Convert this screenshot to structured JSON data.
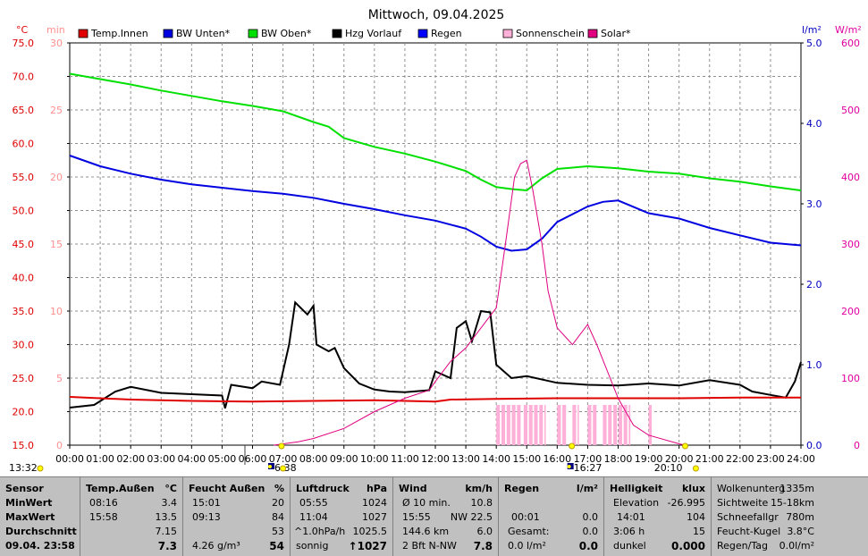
{
  "chart_data": {
    "type": "line",
    "title": "Mittwoch, 09.04.2025",
    "x_ticks": [
      "00:00",
      "01:00",
      "02:00",
      "03:00",
      "04:00",
      "05:00",
      "06:00",
      "07:00",
      "08:00",
      "09:00",
      "10:00",
      "11:00",
      "12:00",
      "13:00",
      "14:00",
      "15:00",
      "16:00",
      "17:00",
      "18:00",
      "19:00",
      "20:00",
      "21:00",
      "22:00",
      "23:00",
      "24:00"
    ],
    "axes": {
      "temp_c": {
        "label": "°C",
        "color": "#e00000",
        "min": 15,
        "max": 75,
        "ticks": [
          "15.0",
          "20.0",
          "25.0",
          "30.0",
          "35.0",
          "40.0",
          "45.0",
          "50.0",
          "55.0",
          "60.0",
          "65.0",
          "70.0",
          "75.0"
        ]
      },
      "min": {
        "label": "min",
        "color": "#ff9090",
        "ticks": [
          "0",
          "5",
          "10",
          "15",
          "20",
          "25",
          "30"
        ]
      },
      "rain": {
        "label": "l/m²",
        "color": "#0000c0",
        "ticks": [
          "0.0",
          "1.0",
          "2.0",
          "3.0",
          "4.0",
          "5.0"
        ]
      },
      "solar": {
        "label": "W/m²",
        "color": "#e000a0",
        "ticks": [
          "0",
          "100",
          "200",
          "300",
          "400",
          "500",
          "600"
        ]
      }
    },
    "legend": [
      {
        "name": "Temp.Innen",
        "color": "#e00000"
      },
      {
        "name": "BW Unten*",
        "color": "#0000e0"
      },
      {
        "name": "BW Oben*",
        "color": "#00e000"
      },
      {
        "name": "Hzg Vorlauf",
        "color": "#000000"
      },
      {
        "name": "Regen",
        "color": "#0000ff"
      },
      {
        "name": "Sonnenschein",
        "color": "#ffb0d8"
      },
      {
        "name": "Solar*",
        "color": "#e00080"
      }
    ],
    "series": [
      {
        "name": "BW Oben*",
        "color": "#00e000",
        "axis": "temp_c",
        "points": [
          [
            0,
            70.4
          ],
          [
            1,
            69.6
          ],
          [
            2,
            68.8
          ],
          [
            3,
            67.9
          ],
          [
            4,
            67.1
          ],
          [
            5,
            66.3
          ],
          [
            6,
            65.6
          ],
          [
            7,
            64.8
          ],
          [
            8,
            63.2
          ],
          [
            8.5,
            62.5
          ],
          [
            9,
            60.8
          ],
          [
            10,
            59.5
          ],
          [
            11,
            58.5
          ],
          [
            12,
            57.3
          ],
          [
            13,
            55.9
          ],
          [
            13.5,
            54.6
          ],
          [
            14,
            53.5
          ],
          [
            14.5,
            53.2
          ],
          [
            15,
            53.0
          ],
          [
            15.5,
            54.8
          ],
          [
            16,
            56.2
          ],
          [
            17,
            56.6
          ],
          [
            18,
            56.3
          ],
          [
            19,
            55.8
          ],
          [
            20,
            55.5
          ],
          [
            21,
            54.8
          ],
          [
            22,
            54.3
          ],
          [
            23,
            53.6
          ],
          [
            24,
            53.0
          ]
        ]
      },
      {
        "name": "BW Unten*",
        "color": "#0000e0",
        "axis": "temp_c",
        "points": [
          [
            0,
            58.2
          ],
          [
            1,
            56.6
          ],
          [
            2,
            55.5
          ],
          [
            3,
            54.6
          ],
          [
            4,
            53.9
          ],
          [
            5,
            53.4
          ],
          [
            6,
            52.9
          ],
          [
            7,
            52.5
          ],
          [
            8,
            51.9
          ],
          [
            9,
            51.0
          ],
          [
            10,
            50.2
          ],
          [
            11,
            49.3
          ],
          [
            12,
            48.5
          ],
          [
            13,
            47.3
          ],
          [
            13.5,
            46.1
          ],
          [
            14,
            44.6
          ],
          [
            14.5,
            44.0
          ],
          [
            15,
            44.2
          ],
          [
            15.5,
            45.8
          ],
          [
            16,
            48.3
          ],
          [
            17,
            50.6
          ],
          [
            17.5,
            51.3
          ],
          [
            18,
            51.5
          ],
          [
            19,
            49.6
          ],
          [
            20,
            48.8
          ],
          [
            21,
            47.4
          ],
          [
            22,
            46.3
          ],
          [
            23,
            45.2
          ],
          [
            24,
            44.8
          ]
        ]
      },
      {
        "name": "Hzg Vorlauf",
        "color": "#000000",
        "axis": "temp_c",
        "points": [
          [
            0,
            20.6
          ],
          [
            0.8,
            21.0
          ],
          [
            1.5,
            23.0
          ],
          [
            2,
            23.7
          ],
          [
            3,
            22.8
          ],
          [
            4,
            22.6
          ],
          [
            5,
            22.4
          ],
          [
            5.1,
            20.5
          ],
          [
            5.3,
            24.0
          ],
          [
            6,
            23.5
          ],
          [
            6.3,
            24.5
          ],
          [
            6.9,
            24.0
          ],
          [
            7.2,
            30.0
          ],
          [
            7.4,
            36.3
          ],
          [
            7.8,
            34.5
          ],
          [
            8,
            35.8
          ],
          [
            8.1,
            30.0
          ],
          [
            8.5,
            29.0
          ],
          [
            8.7,
            29.5
          ],
          [
            9,
            26.5
          ],
          [
            9.5,
            24.2
          ],
          [
            10,
            23.3
          ],
          [
            10.5,
            23.0
          ],
          [
            11,
            22.9
          ],
          [
            11.8,
            23.2
          ],
          [
            12,
            26.0
          ],
          [
            12.5,
            25.0
          ],
          [
            12.7,
            32.5
          ],
          [
            13,
            33.5
          ],
          [
            13.2,
            30.5
          ],
          [
            13.5,
            35.0
          ],
          [
            13.8,
            34.8
          ],
          [
            14,
            27.0
          ],
          [
            14.5,
            25.0
          ],
          [
            15,
            25.3
          ],
          [
            16,
            24.3
          ],
          [
            17,
            24.0
          ],
          [
            18,
            23.9
          ],
          [
            19,
            24.2
          ],
          [
            20,
            23.9
          ],
          [
            21,
            24.7
          ],
          [
            22,
            24.0
          ],
          [
            22.4,
            23.0
          ],
          [
            23,
            22.5
          ],
          [
            23.5,
            22.1
          ],
          [
            23.8,
            24.5
          ],
          [
            24,
            27.4
          ]
        ]
      },
      {
        "name": "Temp.Innen",
        "color": "#e00000",
        "axis": "temp_c",
        "points": [
          [
            0,
            22.2
          ],
          [
            2,
            21.8
          ],
          [
            4,
            21.6
          ],
          [
            6,
            21.5
          ],
          [
            8,
            21.6
          ],
          [
            10,
            21.7
          ],
          [
            12,
            21.5
          ],
          [
            12.5,
            21.8
          ],
          [
            14,
            21.9
          ],
          [
            16,
            22.0
          ],
          [
            18,
            22.0
          ],
          [
            20,
            22.0
          ],
          [
            22,
            22.1
          ],
          [
            24,
            22.1
          ]
        ]
      },
      {
        "name": "Solar*",
        "color": "#e00080",
        "axis": "solar",
        "points": [
          [
            6.7,
            0
          ],
          [
            7.5,
            5
          ],
          [
            8,
            10
          ],
          [
            9,
            25
          ],
          [
            10,
            50
          ],
          [
            11,
            70
          ],
          [
            11.8,
            82
          ],
          [
            12,
            95
          ],
          [
            12.5,
            125
          ],
          [
            13,
            145
          ],
          [
            13.5,
            175
          ],
          [
            14,
            205
          ],
          [
            14.3,
            300
          ],
          [
            14.6,
            400
          ],
          [
            14.8,
            420
          ],
          [
            15,
            425
          ],
          [
            15.2,
            380
          ],
          [
            15.5,
            300
          ],
          [
            15.7,
            230
          ],
          [
            16,
            175
          ],
          [
            16.3,
            160
          ],
          [
            16.5,
            150
          ],
          [
            17,
            180
          ],
          [
            17.3,
            150
          ],
          [
            18,
            70
          ],
          [
            18.5,
            30
          ],
          [
            19,
            15
          ],
          [
            20,
            2
          ],
          [
            20.2,
            0
          ]
        ]
      }
    ],
    "sunshine_intervals": [
      [
        14.0,
        14.8
      ],
      [
        14.9,
        15.6
      ],
      [
        16.0,
        16.3
      ],
      [
        16.5,
        16.7
      ],
      [
        17.0,
        17.3
      ],
      [
        17.5,
        18.4
      ],
      [
        19.0,
        19.1
      ]
    ],
    "markers_left": [
      {
        "label": "13:32"
      }
    ],
    "markers_bottom": [
      {
        "label": "6:38"
      },
      {
        "label": "16:27"
      },
      {
        "label": "20:10"
      }
    ]
  },
  "panel": {
    "sensor": {
      "header": "Sensor",
      "min": "MinWert",
      "max": "MaxWert",
      "avg": "Durchschnitt",
      "now": "09.04. 23:58"
    },
    "temp": {
      "header": "Temp.Außen",
      "unit": "°C",
      "min_time": "08:16",
      "min_val": "3.4",
      "max_time": "15:58",
      "max_val": "13.5",
      "avg": "7.15",
      "now": "7.3"
    },
    "feucht": {
      "header": "Feucht Außen",
      "unit": "%",
      "min_time": "15:01",
      "min_val": "20",
      "max_time": "09:13",
      "max_val": "84",
      "avg": "53",
      "extra": "4.26 g/m³",
      "now": "54"
    },
    "luft": {
      "header": "Luftdruck",
      "unit": "hPa",
      "min_time": "05:55",
      "min_val": "1024",
      "max_time": "11:04",
      "max_val": "1027",
      "trend_label": "^1.0hPa/h",
      "trend_val": "1025.5",
      "state": "sonnig",
      "now": "↑1027"
    },
    "wind": {
      "header": "Wind",
      "unit": "km/h",
      "r1_label": "Ø 10 min.",
      "r1_val": "10.8",
      "r2_label": "15:55",
      "r2_val": "NW 22.5",
      "r3_label": "144.6 km",
      "r3_val": "6.0",
      "r4_label": "2 Bft N-NW",
      "r4_val": "7.8"
    },
    "regen": {
      "header": "Regen",
      "unit": "l/m²",
      "r2_label": "00:01",
      "r2_val": "0.0",
      "r3_label": "Gesamt:",
      "r3_val": "0.0",
      "r4_label": "0.0 l/m²",
      "r4_val": "0.0"
    },
    "hell": {
      "header": "Helligkeit",
      "unit": "klux",
      "r1_label": "Elevation",
      "r1_val": "-26.995",
      "r2_label": "14:01",
      "r2_val": "104",
      "r3_label": "3:06 h",
      "r3_val": "15",
      "r4_label": "dunkel",
      "r4_val": "0.000"
    },
    "extra": {
      "r0_label": "Wolkenunterg",
      "r0_val": "1335m",
      "r1_label": "Sichtweite",
      "r1_val": "15-18km",
      "r2_label": "Schneefallgr",
      "r2_val": "780m",
      "r3_label": "Feucht-Kugel",
      "r3_val": "3.8°C",
      "r4_label": "Regen/Tag",
      "r4_val": "0.0l/m²"
    }
  }
}
